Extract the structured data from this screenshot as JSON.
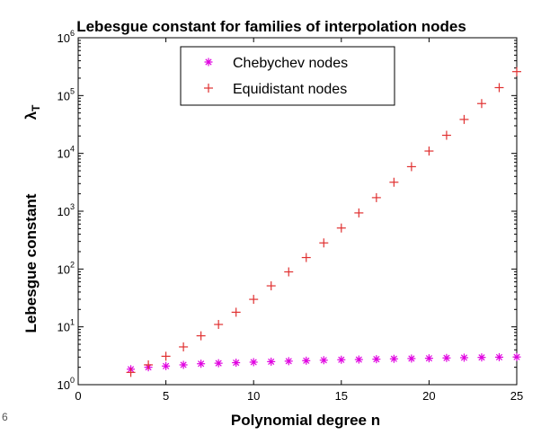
{
  "chart_data": {
    "type": "scatter",
    "title": "Lebesgue constant for families of interpolation nodes",
    "xlabel": "Polynomial degree n",
    "ylabel_main": "Lebesgue constant",
    "ylabel_symbol": "λ",
    "ylabel_subscript": "T",
    "xlim": [
      0,
      25
    ],
    "ylim": [
      1,
      1000000
    ],
    "yscale": "log",
    "xticks": [
      0,
      5,
      10,
      15,
      20,
      25
    ],
    "yticks": [
      {
        "base": "10",
        "exp": "0",
        "value": 1
      },
      {
        "base": "10",
        "exp": "1",
        "value": 10
      },
      {
        "base": "10",
        "exp": "2",
        "value": 100
      },
      {
        "base": "10",
        "exp": "3",
        "value": 1000
      },
      {
        "base": "10",
        "exp": "4",
        "value": 10000
      },
      {
        "base": "10",
        "exp": "5",
        "value": 100000
      },
      {
        "base": "10",
        "exp": "6",
        "value": 1000000
      }
    ],
    "grid": false,
    "legend_position": "top-center",
    "series": [
      {
        "name": "Chebychev nodes",
        "marker": "asterisk",
        "color": "#e000e0",
        "x": [
          3,
          4,
          5,
          6,
          7,
          8,
          9,
          10,
          11,
          12,
          13,
          14,
          15,
          16,
          17,
          18,
          19,
          20,
          21,
          22,
          23,
          24,
          25
        ],
        "y": [
          1.85,
          2.0,
          2.1,
          2.2,
          2.3,
          2.35,
          2.4,
          2.45,
          2.5,
          2.55,
          2.6,
          2.65,
          2.7,
          2.72,
          2.76,
          2.8,
          2.83,
          2.86,
          2.9,
          2.93,
          2.96,
          2.99,
          3.01
        ]
      },
      {
        "name": "Equidistant nodes",
        "marker": "plus",
        "color": "#e03030",
        "x": [
          3,
          4,
          5,
          6,
          7,
          8,
          9,
          10,
          11,
          12,
          13,
          14,
          15,
          16,
          17,
          18,
          19,
          20,
          21,
          22,
          23,
          24,
          25
        ],
        "y": [
          1.63,
          2.2,
          3.1,
          4.5,
          7.0,
          11,
          17.9,
          29.9,
          51.2,
          89.3,
          158,
          283,
          512,
          934,
          1716,
          3171,
          5890,
          10985,
          20568,
          38641,
          72744,
          137237,
          259451
        ]
      }
    ]
  },
  "side_fragment": "6"
}
